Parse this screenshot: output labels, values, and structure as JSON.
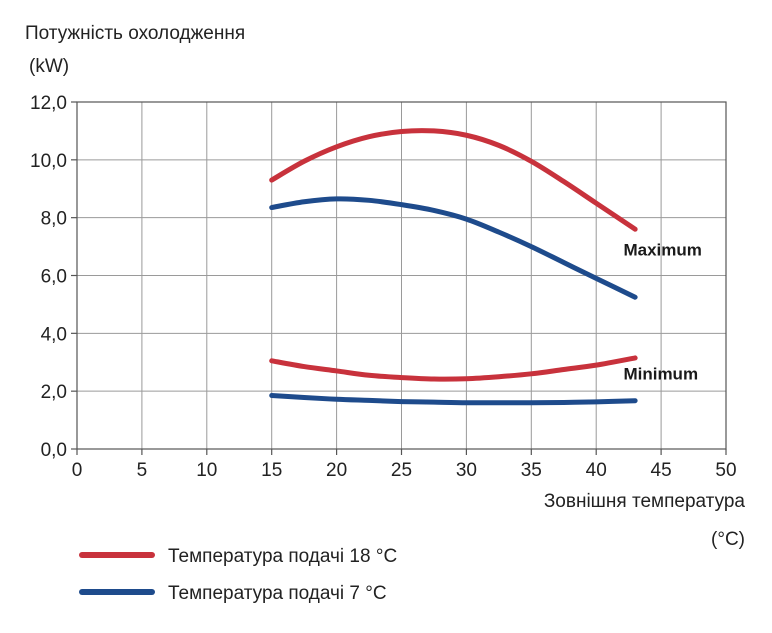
{
  "chart_data": {
    "type": "line",
    "ylabel_line1": "Потужність охолодження",
    "ylabel_line2": "(kW)",
    "xlabel_line1": "Зовнішня температура",
    "xlabel_line2": "(°C)",
    "xlim": [
      0,
      50
    ],
    "ylim": [
      0,
      12
    ],
    "x_ticks": [
      0,
      5,
      10,
      15,
      20,
      25,
      30,
      35,
      40,
      45,
      50
    ],
    "x_tick_labels": [
      "0",
      "5",
      "10",
      "15",
      "20",
      "25",
      "30",
      "35",
      "40",
      "45",
      "50"
    ],
    "y_ticks": [
      0,
      2,
      4,
      6,
      8,
      10,
      12
    ],
    "y_tick_labels": [
      "0,0",
      "2,0",
      "4,0",
      "6,0",
      "8,0",
      "10,0",
      "12,0"
    ],
    "grid": true,
    "legend_position": "bottom-left",
    "annotations": [
      {
        "text": "Maximum",
        "x": 42.1,
        "y": 6.7
      },
      {
        "text": "Minimum",
        "x": 42.1,
        "y": 2.4
      }
    ],
    "series": [
      {
        "name": "Температура подачі 18 °C",
        "color": "#c8323c",
        "group": "max",
        "x": [
          15,
          17.5,
          20,
          22.5,
          25,
          27.5,
          30,
          32.5,
          35,
          37.5,
          40,
          43
        ],
        "y": [
          9.3,
          9.95,
          10.45,
          10.8,
          10.98,
          11.0,
          10.85,
          10.5,
          9.95,
          9.25,
          8.5,
          7.6
        ]
      },
      {
        "name": "Температура подачі 7 °C",
        "color": "#1e4b8c",
        "group": "max",
        "x": [
          15,
          17.5,
          20,
          22.5,
          25,
          27.5,
          30,
          32.5,
          35,
          37.5,
          40,
          43
        ],
        "y": [
          8.35,
          8.55,
          8.65,
          8.6,
          8.45,
          8.25,
          7.95,
          7.5,
          7.0,
          6.45,
          5.9,
          5.25
        ]
      },
      {
        "name": "Температура подачі 18 °C",
        "color": "#c8323c",
        "group": "min",
        "x": [
          15,
          17.5,
          20,
          22.5,
          25,
          27.5,
          30,
          32.5,
          35,
          37.5,
          40,
          43
        ],
        "y": [
          3.05,
          2.85,
          2.7,
          2.55,
          2.47,
          2.42,
          2.43,
          2.5,
          2.6,
          2.75,
          2.9,
          3.15
        ]
      },
      {
        "name": "Температура подачі 7 °C",
        "color": "#1e4b8c",
        "group": "min",
        "x": [
          15,
          17.5,
          20,
          22.5,
          25,
          27.5,
          30,
          32.5,
          35,
          37.5,
          40,
          43
        ],
        "y": [
          1.85,
          1.78,
          1.72,
          1.68,
          1.64,
          1.62,
          1.6,
          1.6,
          1.6,
          1.61,
          1.63,
          1.67
        ]
      }
    ],
    "legend": [
      {
        "label": "Температура подачі 18 °C",
        "color": "#c8323c"
      },
      {
        "label": "Температура подачі 7 °C",
        "color": "#1e4b8c"
      }
    ]
  }
}
